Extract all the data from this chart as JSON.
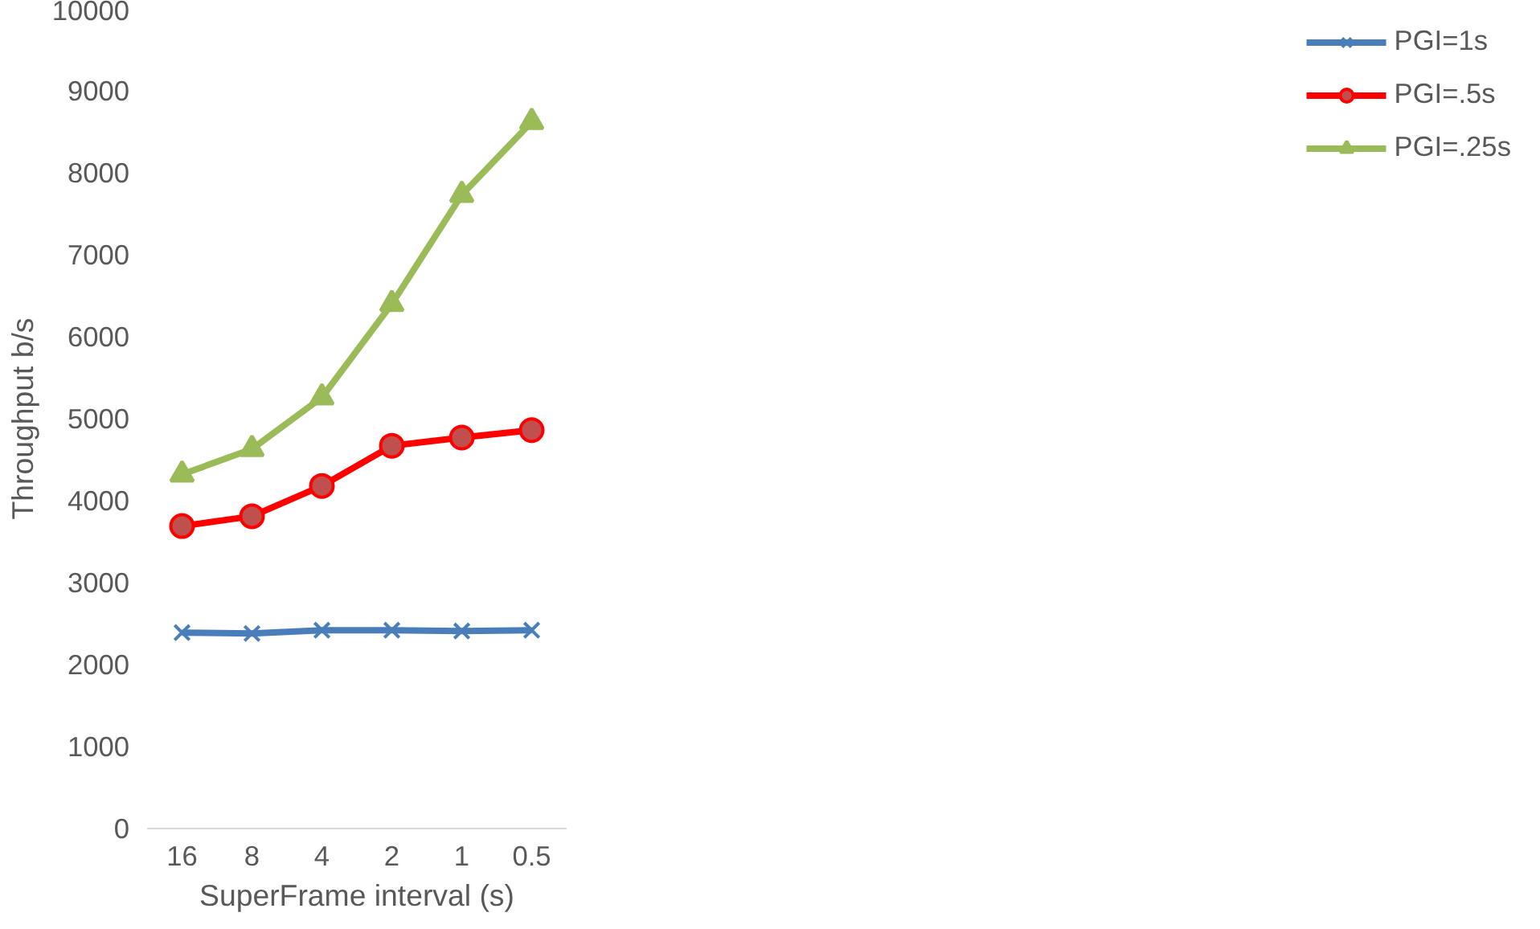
{
  "chart_data": {
    "type": "line",
    "xlabel": "SuperFrame interval (s)",
    "ylabel": "Throughput b/s",
    "categories": [
      "16",
      "8",
      "4",
      "2",
      "1",
      "0.5"
    ],
    "ylim": [
      0,
      10000
    ],
    "yticks": [
      0,
      1000,
      2000,
      3000,
      4000,
      5000,
      6000,
      7000,
      8000,
      9000,
      10000
    ],
    "grid": false,
    "legend": "right",
    "line_style": "solid",
    "series": [
      {
        "name": "PGI=1s",
        "color": "#4a7ebb",
        "marker": "cross",
        "values": [
          2390,
          2380,
          2420,
          2420,
          2410,
          2420
        ]
      },
      {
        "name": "PGI=.5s",
        "color": "#ff0000",
        "marker": "circle",
        "values": [
          3690,
          3810,
          4180,
          4670,
          4770,
          4860
        ]
      },
      {
        "name": "PGI=.25s",
        "color": "#9bbb59",
        "marker": "triangle",
        "values": [
          4320,
          4630,
          5260,
          6400,
          7730,
          8620
        ]
      }
    ]
  }
}
